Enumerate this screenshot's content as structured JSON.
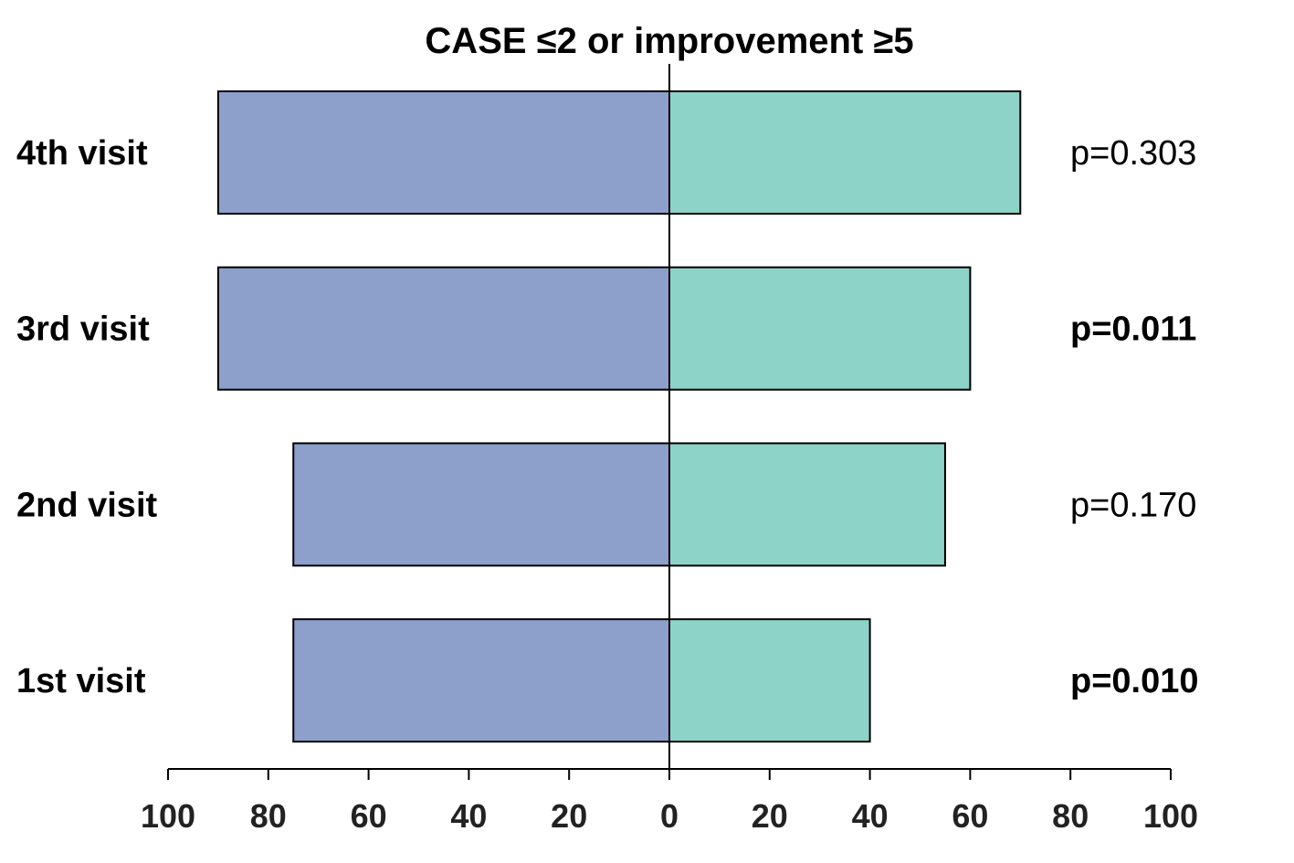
{
  "chart_data": {
    "type": "bar",
    "orientation": "horizontal-diverging",
    "title": "CASE ≤2 or improvement ≥5",
    "categories": [
      "4th visit",
      "3rd visit",
      "2nd visit",
      "1st visit"
    ],
    "series": [
      {
        "values": [
          90,
          90,
          75,
          75
        ],
        "color": "#8da0cb",
        "side": "left"
      },
      {
        "values": [
          70,
          60,
          55,
          40
        ],
        "color": "#8dd3c7",
        "side": "right"
      }
    ],
    "annotations": [
      {
        "text": "p=0.303",
        "bold": false
      },
      {
        "text": "p=0.011",
        "bold": true
      },
      {
        "text": "p=0.170",
        "bold": false
      },
      {
        "text": "p=0.010",
        "bold": true
      }
    ],
    "xlim": [
      -100,
      100
    ],
    "ticks": [
      -100,
      -80,
      -60,
      -40,
      -20,
      0,
      20,
      40,
      60,
      80,
      100
    ],
    "tick_labels": [
      "100",
      "80",
      "60",
      "40",
      "20",
      "0",
      "20",
      "40",
      "60",
      "80",
      "100"
    ],
    "grid": false,
    "legend": "none"
  }
}
